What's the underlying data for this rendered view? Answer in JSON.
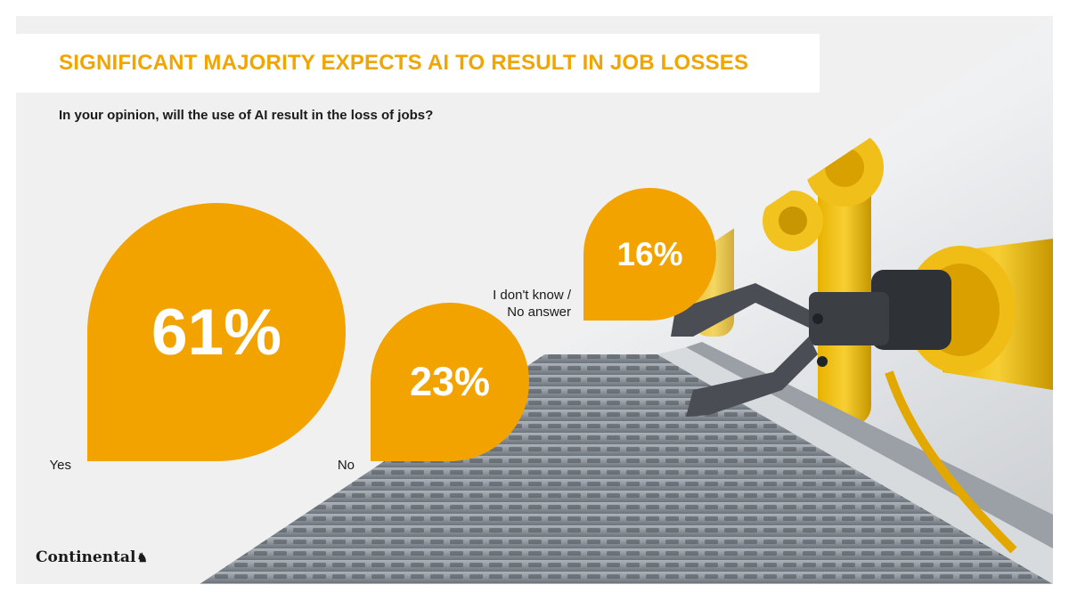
{
  "chart_data": {
    "type": "bar",
    "title": "SIGNIFICANT MAJORITY EXPECTS AI TO RESULT IN JOB LOSSES",
    "subtitle": "In your opinion, will the use of AI result in the loss of jobs?",
    "categories": [
      "Yes",
      "No",
      "I don't know /\nNo answer"
    ],
    "values": [
      61,
      23,
      16
    ],
    "value_labels": [
      "61%",
      "23%",
      "16%"
    ],
    "unit": "%"
  },
  "brand": {
    "logo_text": "Continental",
    "logo_mark": "horse-icon",
    "accent_color": "#f2a300",
    "title_color": "#f0a500"
  }
}
